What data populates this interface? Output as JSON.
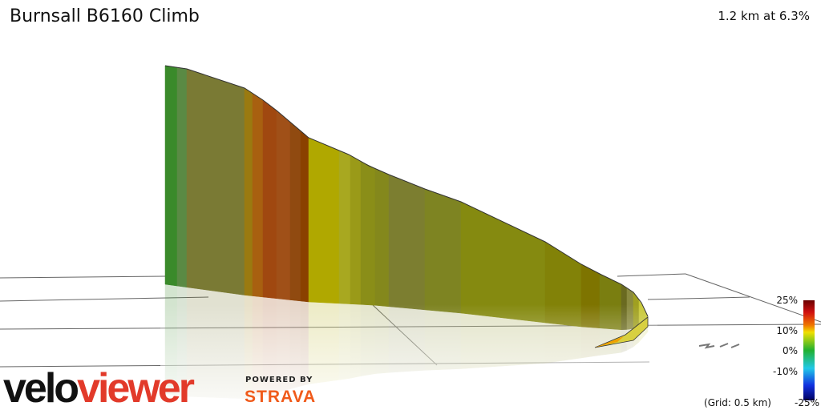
{
  "header": {
    "title": "Burnsall B6160 Climb",
    "summary": "1.2 km at 6.3%"
  },
  "legend": {
    "ticks": [
      "25%",
      "10%",
      "0%",
      "-10%",
      "-25%"
    ],
    "grid_note": "(Grid: 0.5 km)"
  },
  "branding": {
    "logo_dark": "velo",
    "logo_red": "viewer",
    "powered_by": "POWERED BY",
    "strava": "STRAVA"
  }
}
